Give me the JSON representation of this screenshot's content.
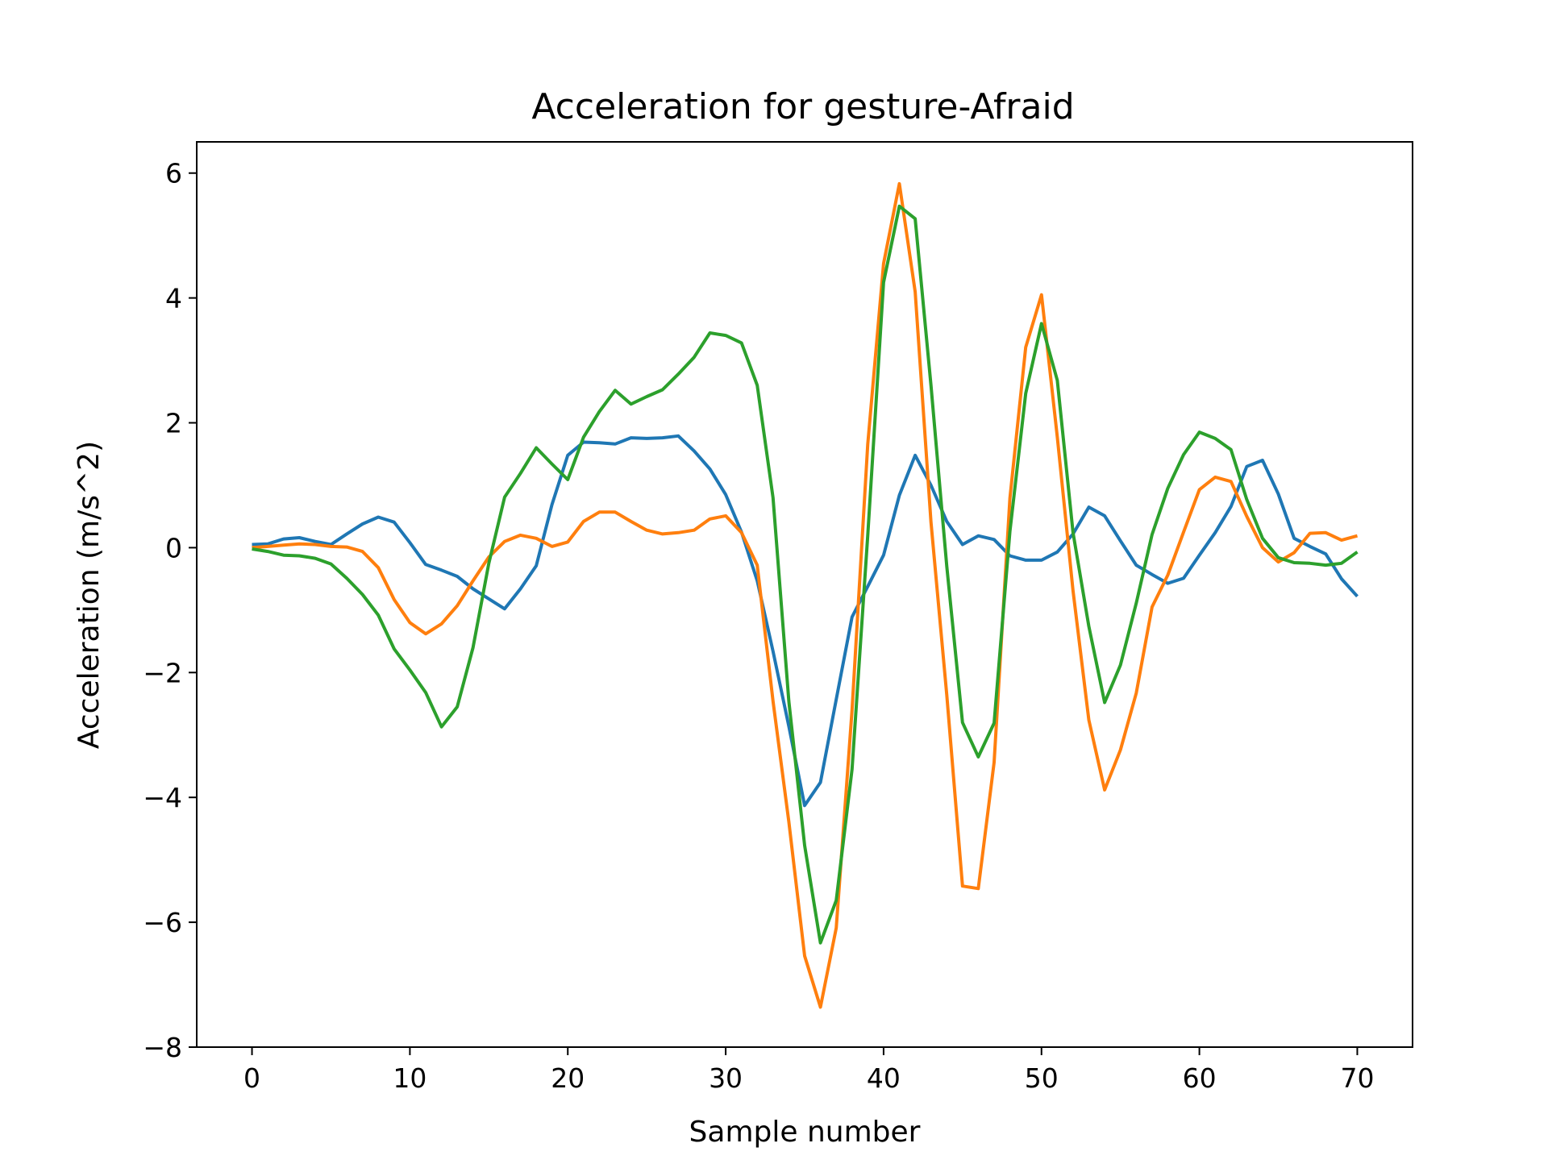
{
  "chart_data": {
    "type": "line",
    "title": "Acceleration for gesture-Afraid",
    "xlabel": "Sample number",
    "ylabel": "Acceleration (m/s^2)",
    "xlim": [
      -3.5,
      73.5
    ],
    "ylim": [
      -8,
      6.5
    ],
    "xticks": [
      0,
      10,
      20,
      30,
      40,
      50,
      60,
      70
    ],
    "yticks": [
      -8,
      -6,
      -4,
      -2,
      0,
      2,
      4,
      6
    ],
    "xtick_labels": [
      "0",
      "10",
      "20",
      "30",
      "40",
      "50",
      "60",
      "70"
    ],
    "ytick_labels": [
      "−8",
      "−6",
      "−4",
      "−2",
      "0",
      "2",
      "4",
      "6"
    ],
    "grid": false,
    "legend": "none",
    "x": [
      0,
      1,
      2,
      3,
      4,
      5,
      6,
      7,
      8,
      9,
      10,
      11,
      12,
      13,
      14,
      15,
      16,
      17,
      18,
      19,
      20,
      21,
      22,
      23,
      24,
      25,
      26,
      27,
      28,
      29,
      30,
      31,
      32,
      33,
      34,
      35,
      36,
      37,
      38,
      39,
      40,
      41,
      42,
      43,
      44,
      45,
      46,
      47,
      48,
      49,
      50,
      51,
      52,
      53,
      54,
      55,
      56,
      57,
      58,
      59,
      60,
      61,
      62,
      63,
      64,
      65,
      66,
      67,
      68,
      69,
      70
    ],
    "series": [
      {
        "color": "#1f77b4",
        "values": [
          0.05,
          0.06,
          0.14,
          0.16,
          0.1,
          0.05,
          0.22,
          0.38,
          0.49,
          0.41,
          0.08,
          -0.27,
          -0.36,
          -0.46,
          -0.66,
          -0.82,
          -0.98,
          -0.66,
          -0.29,
          0.69,
          1.48,
          1.69,
          1.68,
          1.66,
          1.76,
          1.75,
          1.76,
          1.79,
          1.55,
          1.26,
          0.85,
          0.25,
          -0.53,
          -1.66,
          -2.86,
          -4.13,
          -3.76,
          -2.43,
          -1.11,
          -0.62,
          -0.12,
          0.84,
          1.48,
          1.0,
          0.42,
          0.05,
          0.19,
          0.13,
          -0.13,
          -0.2,
          -0.2,
          -0.07,
          0.22,
          0.65,
          0.51,
          0.11,
          -0.28,
          -0.43,
          -0.57,
          -0.49,
          -0.12,
          0.24,
          0.66,
          1.3,
          1.4,
          0.86,
          0.15,
          0.02,
          -0.1,
          -0.5,
          -0.78
        ]
      },
      {
        "color": "#ff7f0e",
        "values": [
          0.0,
          0.02,
          0.04,
          0.06,
          0.05,
          0.02,
          0.01,
          -0.06,
          -0.32,
          -0.83,
          -1.2,
          -1.38,
          -1.22,
          -0.93,
          -0.53,
          -0.15,
          0.1,
          0.2,
          0.15,
          0.02,
          0.09,
          0.42,
          0.57,
          0.57,
          0.42,
          0.28,
          0.22,
          0.24,
          0.28,
          0.46,
          0.51,
          0.24,
          -0.28,
          -2.46,
          -4.39,
          -6.54,
          -7.36,
          -6.09,
          -2.6,
          1.66,
          4.55,
          5.83,
          4.1,
          0.41,
          -2.36,
          -5.42,
          -5.46,
          -3.44,
          0.79,
          3.21,
          4.05,
          1.77,
          -0.69,
          -2.76,
          -3.88,
          -3.24,
          -2.33,
          -0.95,
          -0.44,
          0.25,
          0.93,
          1.13,
          1.06,
          0.5,
          0.0,
          -0.23,
          -0.08,
          0.23,
          0.24,
          0.12,
          0.19
        ]
      },
      {
        "color": "#2ca02c",
        "values": [
          -0.02,
          -0.06,
          -0.12,
          -0.13,
          -0.17,
          -0.26,
          -0.49,
          -0.75,
          -1.08,
          -1.62,
          -1.96,
          -2.32,
          -2.87,
          -2.55,
          -1.6,
          -0.25,
          0.81,
          1.19,
          1.6,
          1.34,
          1.09,
          1.77,
          2.18,
          2.52,
          2.3,
          2.42,
          2.53,
          2.78,
          3.05,
          3.44,
          3.4,
          3.28,
          2.6,
          0.8,
          -2.46,
          -4.77,
          -6.33,
          -5.65,
          -3.55,
          0.2,
          4.25,
          5.47,
          5.27,
          2.6,
          -0.3,
          -2.8,
          -3.35,
          -2.81,
          0.26,
          2.47,
          3.59,
          2.68,
          0.24,
          -1.26,
          -2.48,
          -1.88,
          -0.89,
          0.21,
          0.95,
          1.49,
          1.85,
          1.75,
          1.57,
          0.77,
          0.15,
          -0.16,
          -0.24,
          -0.25,
          -0.28,
          -0.25,
          -0.07
        ]
      }
    ]
  }
}
